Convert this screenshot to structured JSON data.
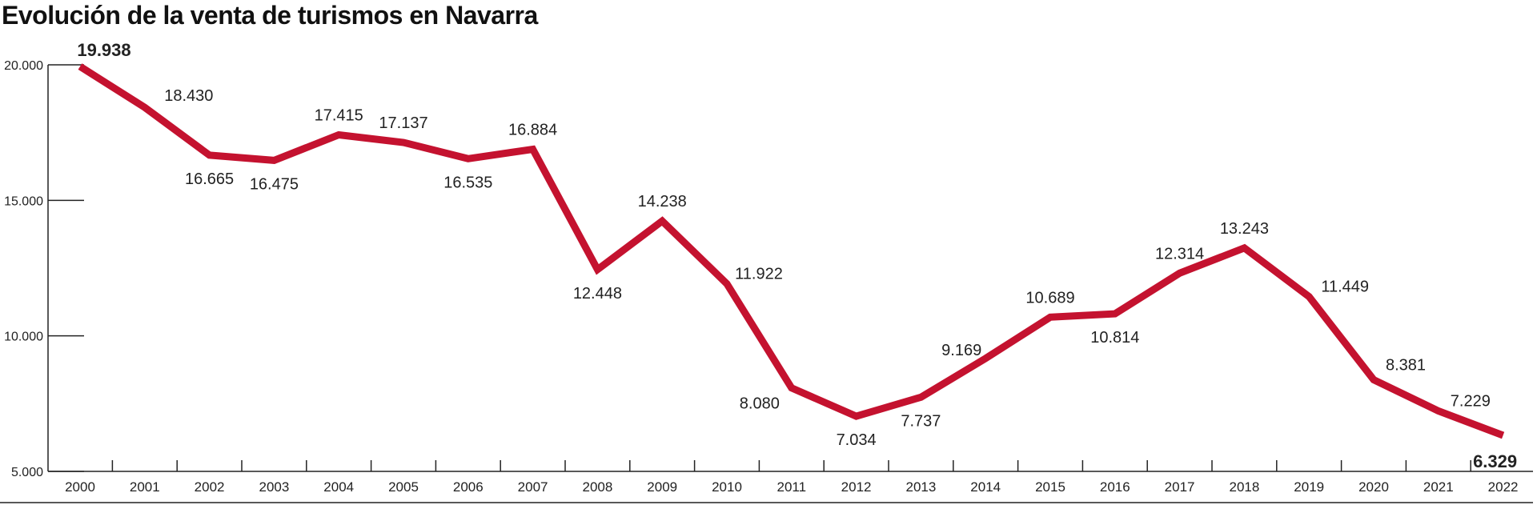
{
  "chart_data": {
    "type": "line",
    "title": "Evolución de la venta de turismos en Navarra",
    "x": [
      "2000",
      "2001",
      "2002",
      "2003",
      "2004",
      "2005",
      "2006",
      "2007",
      "2008",
      "2009",
      "2010",
      "2011",
      "2012",
      "2013",
      "2014",
      "2015",
      "2016",
      "2017",
      "2018",
      "2019",
      "2020",
      "2021",
      "2022"
    ],
    "series": [
      {
        "values": [
          19938,
          18430,
          16665,
          16475,
          17415,
          17137,
          16535,
          16884,
          12448,
          14238,
          11922,
          8080,
          7034,
          7737,
          9169,
          10689,
          10814,
          12314,
          13243,
          11449,
          8381,
          7229,
          6329
        ],
        "labels": [
          "19.938",
          "18.430",
          "16.665",
          "16.475",
          "17.415",
          "17.137",
          "16.535",
          "16.884",
          "12.448",
          "14.238",
          "11.922",
          "8.080",
          "7.034",
          "7.737",
          "9.169",
          "10.689",
          "10.814",
          "12.314",
          "13.243",
          "11.449",
          "8.381",
          "7.229",
          "6.329"
        ],
        "labels_shown": [
          true,
          true,
          true,
          true,
          true,
          true,
          true,
          true,
          true,
          true,
          true,
          true,
          true,
          true,
          false,
          true,
          true,
          true,
          true,
          true,
          true,
          true,
          true
        ],
        "label_positions": [
          "above",
          "above",
          "below",
          "below",
          "above",
          "above",
          "below",
          "above",
          "below",
          "above",
          "above",
          "below",
          "below",
          "below",
          "above",
          "above",
          "below",
          "above",
          "above",
          "above",
          "above",
          "above",
          "below"
        ],
        "bold_labels": [
          0,
          22
        ],
        "color": "#c4122f"
      }
    ],
    "extra_labels": [
      {
        "text": "9.169",
        "x": "2014",
        "y": 9169
      }
    ],
    "yticks": [
      5000,
      10000,
      15000,
      20000
    ],
    "ytick_labels": [
      "5.000",
      "10.000",
      "15.000",
      "20.000"
    ],
    "ylim": [
      5000,
      20000
    ],
    "xlabel": "",
    "ylabel": "",
    "grid": false
  }
}
